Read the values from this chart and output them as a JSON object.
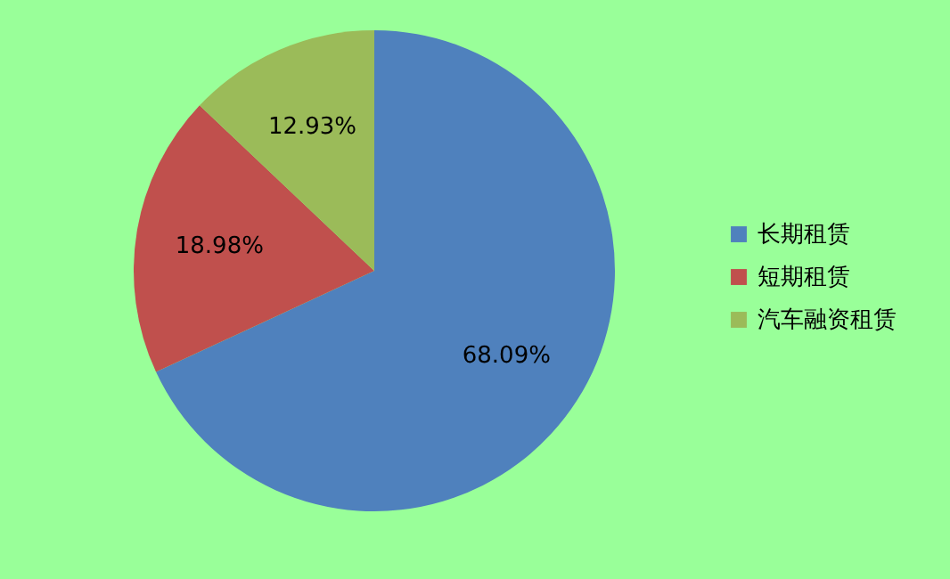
{
  "chart_data": {
    "type": "pie",
    "categories": [
      "长期租赁",
      "短期租赁",
      "汽车融资租赁"
    ],
    "values": [
      68.09,
      18.98,
      12.93
    ],
    "colors": [
      "#4f81bd",
      "#c0504d",
      "#9bbb59"
    ],
    "value_labels": [
      "68.09%",
      "18.98%",
      "12.93%"
    ],
    "legend": "right"
  }
}
